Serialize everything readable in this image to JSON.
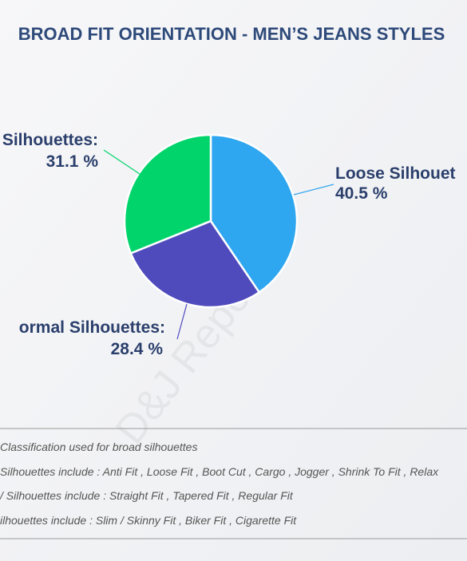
{
  "chart_data": {
    "type": "pie",
    "title": "BROAD FIT ORIENTATION - MEN’S JEANS STYLES",
    "categories": [
      "Loose Silhouet",
      "ormal Silhouettes:",
      "Silhouettes:"
    ],
    "values": [
      40.5,
      28.4,
      31.1
    ],
    "value_labels": [
      "40.5 %",
      "28.4 %",
      "31.1 %"
    ],
    "colors": [
      "#2ea6f0",
      "#4f4bbd",
      "#02d46c"
    ]
  },
  "watermark": "D&J Reports",
  "notes": [
    "Classification used for broad silhouettes",
    "Silhouettes include : Anti Fit , Loose Fit , Boot Cut , Cargo , Jogger , Shrink To Fit , Relax",
    "/ Silhouettes include : Straight Fit , Tapered Fit , Regular Fit",
    "ilhouettes include : Slim / Skinny Fit , Biker Fit , Cigarette Fit"
  ]
}
